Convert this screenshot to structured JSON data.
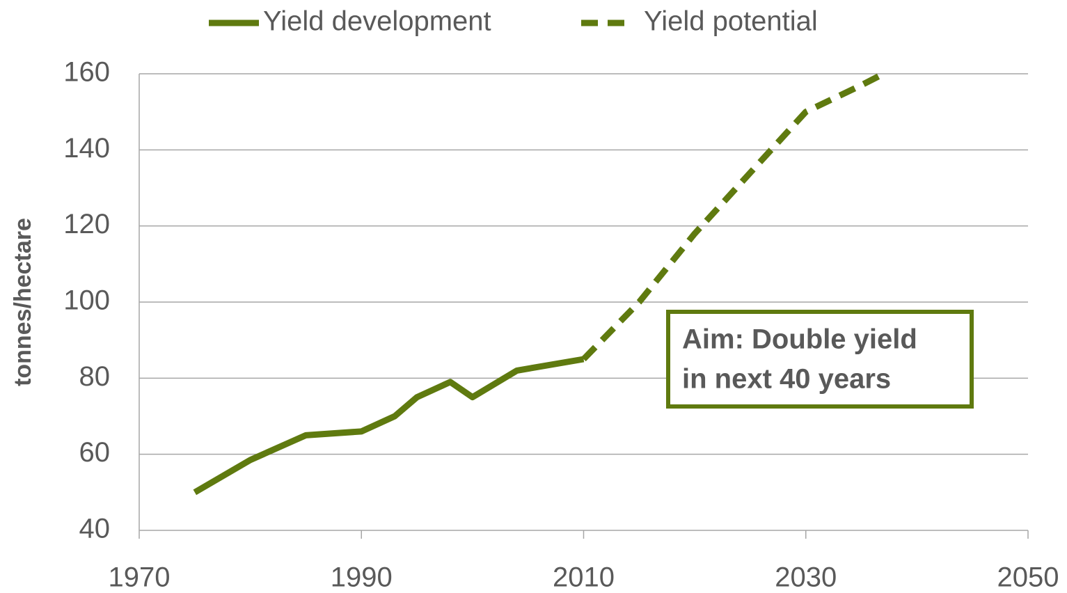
{
  "chart_data": {
    "type": "line",
    "ylabel": "tonnes/hectare",
    "xlim": [
      1970,
      2050
    ],
    "xticks": [
      1970,
      1990,
      2010,
      2030,
      2050
    ],
    "ylim": [
      40,
      160
    ],
    "yticks": [
      40,
      60,
      80,
      100,
      120,
      140,
      160
    ],
    "grid": true,
    "legend": "top",
    "series": [
      {
        "name": "Yield development",
        "color": "#5f7a0f",
        "style": "solid",
        "x": [
          1975,
          1980,
          1985,
          1990,
          1993,
          1995,
          1998,
          2000,
          2004,
          2010
        ],
        "values": [
          50,
          58.5,
          65,
          66,
          70,
          75,
          79,
          75,
          82,
          85
        ]
      },
      {
        "name": "Yield potential",
        "color": "#5f7a0f",
        "style": "dashed",
        "x": [
          2010,
          2015,
          2020,
          2025,
          2030,
          2035,
          2037
        ],
        "values": [
          85,
          100,
          118,
          134,
          150,
          157,
          160
        ]
      }
    ],
    "annotation": [
      "Aim: Double yield",
      "in next 40 years"
    ]
  }
}
